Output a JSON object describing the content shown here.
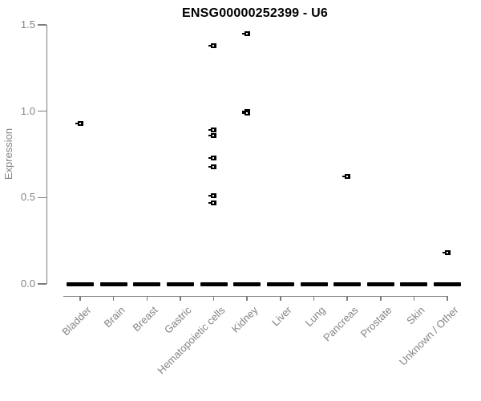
{
  "title": "ENSG00000252399 - U6",
  "y_axis": {
    "label": "Expression",
    "tick_labels": [
      "0.0",
      "0.5",
      "1.0",
      "1.5"
    ]
  },
  "x_axis": {
    "categories": [
      "Bladder",
      "Brain",
      "Breast",
      "Gastric",
      "Hematopoietic cells",
      "Kidney",
      "Liver",
      "Lung",
      "Pancreas",
      "Prostate",
      "Skin",
      "Unknown / Other"
    ]
  },
  "colors": {
    "point": "#000000",
    "axis_line": "#7d7d7d",
    "axis_text": "#838383",
    "title": "#000000",
    "background": "#ffffff"
  },
  "chart_data": {
    "type": "scatter",
    "title": "ENSG00000252399 - U6",
    "xlabel": "",
    "ylabel": "Expression",
    "ylim": [
      0.0,
      1.5
    ],
    "yticks": [
      0.0,
      0.5,
      1.0,
      1.5
    ],
    "ytick_labels": [
      "0.0",
      "0.5",
      "1.0",
      "1.5"
    ],
    "categories": [
      "Bladder",
      "Brain",
      "Breast",
      "Gastric",
      "Hematopoietic cells",
      "Kidney",
      "Liver",
      "Lung",
      "Pancreas",
      "Prostate",
      "Skin",
      "Unknown / Other"
    ],
    "marker": "open-square",
    "grid": false,
    "legend": false,
    "series": [
      {
        "category": "Bladder",
        "nonzero_values": [
          0.93
        ],
        "zero_cluster": true
      },
      {
        "category": "Brain",
        "nonzero_values": [],
        "zero_cluster": true
      },
      {
        "category": "Breast",
        "nonzero_values": [],
        "zero_cluster": true
      },
      {
        "category": "Gastric",
        "nonzero_values": [],
        "zero_cluster": true
      },
      {
        "category": "Hematopoietic cells",
        "nonzero_values": [
          1.38,
          0.89,
          0.86,
          0.73,
          0.68,
          0.51,
          0.47
        ],
        "zero_cluster": true
      },
      {
        "category": "Kidney",
        "nonzero_values": [
          1.45,
          1.0,
          0.99
        ],
        "zero_cluster": true
      },
      {
        "category": "Liver",
        "nonzero_values": [],
        "zero_cluster": true
      },
      {
        "category": "Lung",
        "nonzero_values": [],
        "zero_cluster": true
      },
      {
        "category": "Pancreas",
        "nonzero_values": [
          0.62
        ],
        "zero_cluster": true
      },
      {
        "category": "Prostate",
        "nonzero_values": [],
        "zero_cluster": true
      },
      {
        "category": "Skin",
        "nonzero_values": [],
        "zero_cluster": true
      },
      {
        "category": "Unknown / Other",
        "nonzero_values": [
          0.18
        ],
        "zero_cluster": true
      }
    ]
  }
}
